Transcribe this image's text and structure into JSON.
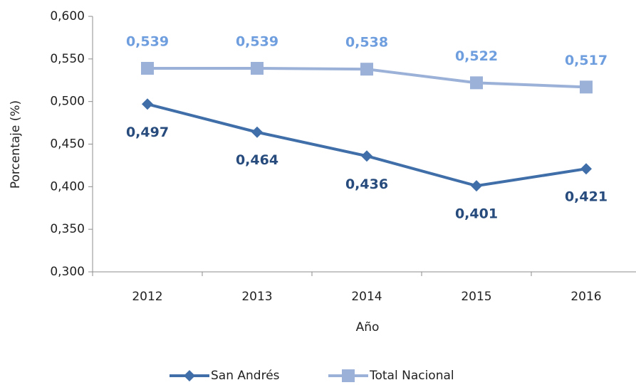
{
  "chart_data": {
    "type": "line",
    "x_label": "Año",
    "y_label": "Porcentaje (%)",
    "categories": [
      "2012",
      "2013",
      "2014",
      "2015",
      "2016"
    ],
    "series": [
      {
        "name": "San Andrés",
        "color": "#3f6ea8",
        "marker": "diamond",
        "values": [
          0.497,
          0.464,
          0.436,
          0.401,
          0.421
        ],
        "value_labels": [
          "0,497",
          "0,464",
          "0,436",
          "0,401",
          "0,421"
        ],
        "label_color": "#264b7c",
        "label_position": "below"
      },
      {
        "name": "Total Nacional",
        "color": "#9bb1d7",
        "marker": "square",
        "values": [
          0.539,
          0.539,
          0.538,
          0.522,
          0.517
        ],
        "value_labels": [
          "0,539",
          "0,539",
          "0,538",
          "0,522",
          "0,517"
        ],
        "label_color": "#6f9edf",
        "label_position": "above"
      }
    ],
    "ylim": [
      0.3,
      0.6
    ],
    "yticks": [
      {
        "value": 0.3,
        "label": "0,300"
      },
      {
        "value": 0.35,
        "label": "0,350"
      },
      {
        "value": 0.4,
        "label": "0,400"
      },
      {
        "value": 0.45,
        "label": "0,450"
      },
      {
        "value": 0.5,
        "label": "0,500"
      },
      {
        "value": 0.55,
        "label": "0,550"
      },
      {
        "value": 0.6,
        "label": "0,600"
      }
    ],
    "grid": false,
    "legend": "bottom"
  }
}
